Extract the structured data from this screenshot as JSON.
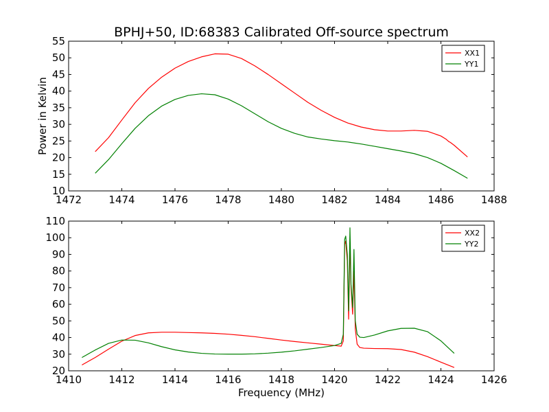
{
  "figure": {
    "title": "BPHJ+50, ID:68383 Calibrated Off-source spectrum"
  },
  "chart_data": [
    {
      "type": "line",
      "title": "BPHJ+50, ID:68383 Calibrated Off-source spectrum",
      "xlabel": "",
      "ylabel": "Power in Kelvin",
      "xlim": [
        1472,
        1488
      ],
      "ylim": [
        10,
        55
      ],
      "xticks": [
        1472,
        1474,
        1476,
        1478,
        1480,
        1482,
        1484,
        1486,
        1488
      ],
      "yticks": [
        10,
        15,
        20,
        25,
        30,
        35,
        40,
        45,
        50,
        55
      ],
      "grid": false,
      "legend": "top-right",
      "series": [
        {
          "name": "XX1",
          "color": "#ff0000",
          "x": [
            1473.0,
            1473.5,
            1474.0,
            1474.5,
            1475.0,
            1475.5,
            1476.0,
            1476.5,
            1477.0,
            1477.5,
            1478.0,
            1478.5,
            1479.0,
            1479.5,
            1480.0,
            1480.5,
            1481.0,
            1481.5,
            1482.0,
            1482.5,
            1483.0,
            1483.5,
            1484.0,
            1484.5,
            1485.0,
            1485.5,
            1486.0,
            1486.2,
            1486.3,
            1486.35,
            1486.5,
            1487.0
          ],
          "y": [
            21.8,
            26.0,
            31.3,
            36.5,
            40.8,
            44.2,
            46.9,
            48.9,
            50.3,
            51.2,
            51.1,
            49.8,
            47.6,
            45.0,
            42.2,
            39.4,
            36.6,
            34.2,
            32.1,
            30.4,
            29.2,
            28.4,
            28.0,
            28.0,
            28.2,
            27.9,
            26.5,
            25.5,
            24.8,
            24.6,
            23.7,
            20.2
          ]
        },
        {
          "name": "YY1",
          "color": "#008000",
          "x": [
            1473.0,
            1473.5,
            1474.0,
            1474.5,
            1475.0,
            1475.5,
            1476.0,
            1476.5,
            1477.0,
            1477.5,
            1478.0,
            1478.5,
            1479.0,
            1479.5,
            1480.0,
            1480.5,
            1481.0,
            1481.5,
            1482.0,
            1482.5,
            1483.0,
            1483.5,
            1484.0,
            1484.5,
            1485.0,
            1485.5,
            1486.0,
            1486.5,
            1487.0
          ],
          "y": [
            15.3,
            19.4,
            24.2,
            28.8,
            32.6,
            35.5,
            37.5,
            38.7,
            39.2,
            38.9,
            37.6,
            35.6,
            33.2,
            30.8,
            28.8,
            27.3,
            26.2,
            25.6,
            25.1,
            24.7,
            24.1,
            23.4,
            22.7,
            22.0,
            21.2,
            20.0,
            18.3,
            16.1,
            13.8
          ]
        }
      ]
    },
    {
      "type": "line",
      "title": "",
      "xlabel": "Frequency (MHz)",
      "ylabel": "",
      "xlim": [
        1410,
        1426
      ],
      "ylim": [
        20,
        110
      ],
      "xticks": [
        1410,
        1412,
        1414,
        1416,
        1418,
        1420,
        1422,
        1424,
        1426
      ],
      "yticks": [
        20,
        30,
        40,
        50,
        60,
        70,
        80,
        90,
        100,
        110
      ],
      "grid": false,
      "legend": "top-right",
      "series": [
        {
          "name": "XX2",
          "color": "#ff0000",
          "x": [
            1410.5,
            1411.0,
            1411.5,
            1412.0,
            1412.5,
            1413.0,
            1413.5,
            1414.0,
            1414.5,
            1415.0,
            1415.5,
            1416.0,
            1416.5,
            1417.0,
            1417.5,
            1418.0,
            1418.5,
            1419.0,
            1419.5,
            1420.0,
            1420.25,
            1420.33,
            1420.38,
            1420.42,
            1420.48,
            1420.53,
            1420.58,
            1420.62,
            1420.68,
            1420.73,
            1420.78,
            1420.85,
            1420.95,
            1421.1,
            1421.5,
            1422.0,
            1422.5,
            1423.0,
            1423.5,
            1424.0,
            1424.5
          ],
          "y": [
            23.5,
            28.0,
            33.0,
            37.8,
            41.2,
            42.8,
            43.2,
            43.2,
            43.0,
            42.8,
            42.5,
            42.0,
            41.3,
            40.5,
            39.5,
            38.5,
            37.6,
            36.8,
            36.0,
            35.2,
            34.8,
            38.0,
            96.0,
            98.0,
            86.0,
            51.0,
            97.0,
            70.0,
            54.0,
            80.0,
            45.0,
            36.0,
            34.0,
            33.6,
            33.4,
            33.3,
            32.8,
            31.2,
            28.5,
            25.2,
            22.0
          ]
        },
        {
          "name": "YY2",
          "color": "#008000",
          "x": [
            1410.5,
            1411.0,
            1411.5,
            1412.0,
            1412.5,
            1413.0,
            1413.5,
            1414.0,
            1414.5,
            1415.0,
            1415.5,
            1416.0,
            1416.5,
            1417.0,
            1417.5,
            1418.0,
            1418.5,
            1419.0,
            1419.5,
            1420.0,
            1420.25,
            1420.33,
            1420.38,
            1420.42,
            1420.48,
            1420.53,
            1420.58,
            1420.62,
            1420.68,
            1420.73,
            1420.78,
            1420.85,
            1420.95,
            1421.1,
            1421.5,
            1422.0,
            1422.5,
            1423.0,
            1423.5,
            1424.0,
            1424.5
          ],
          "y": [
            28.0,
            32.5,
            36.5,
            38.5,
            38.4,
            36.8,
            34.5,
            32.6,
            31.3,
            30.5,
            30.1,
            30.0,
            30.0,
            30.2,
            30.6,
            31.2,
            32.0,
            33.0,
            34.0,
            35.2,
            36.5,
            42.0,
            99.0,
            101.0,
            90.0,
            56.0,
            106.0,
            72.0,
            58.0,
            93.0,
            50.0,
            42.0,
            40.2,
            40.0,
            41.5,
            44.0,
            45.5,
            45.6,
            43.5,
            38.0,
            30.5
          ]
        }
      ]
    }
  ]
}
